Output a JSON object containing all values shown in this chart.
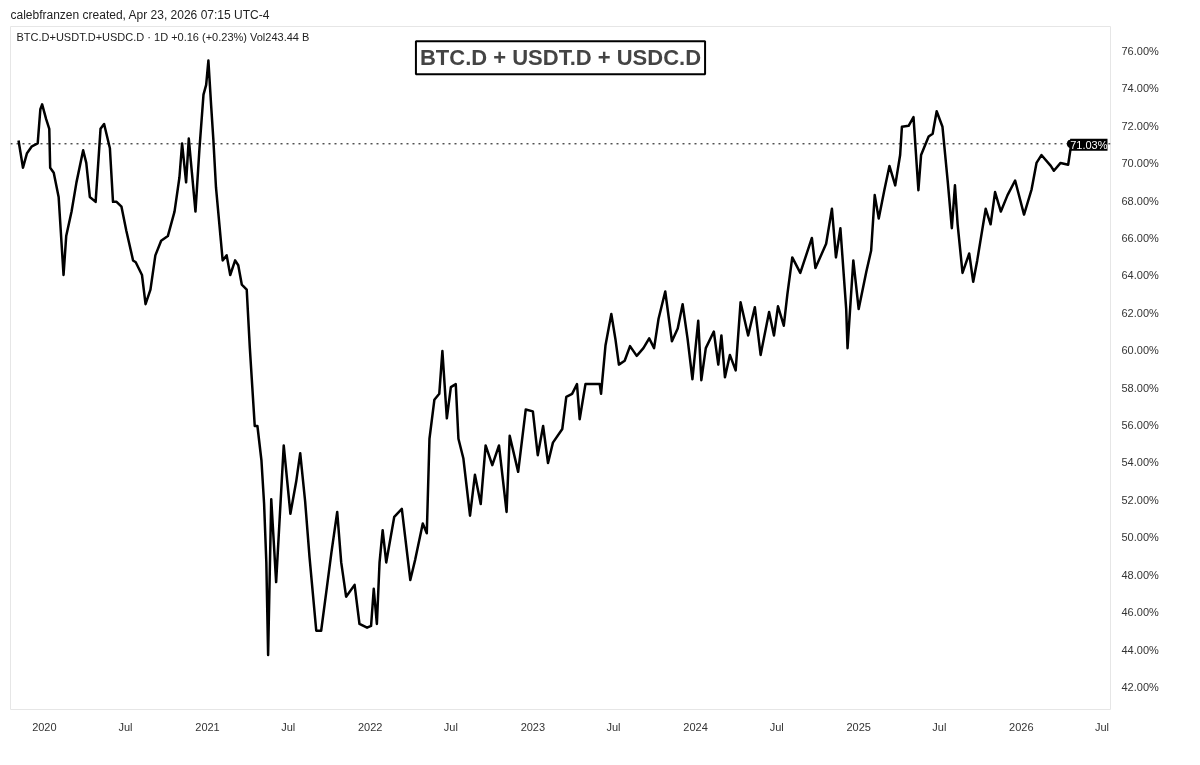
{
  "chart_data": {
    "type": "line",
    "title": "BTC.D + USDT.D + USDC.D",
    "annotations": [
      "calebfranzen created, Apr 23, 2026 07:15 UTC-4",
      "BTC.D+USDT.D+USDC.D · 1D  +0.16 (+0.23%)  Vol243.44 B"
    ],
    "xlim": [
      "2019-10-17",
      "2026-07-20"
    ],
    "ylim": [
      40.8,
      77.3
    ],
    "xticks": [
      {
        "value": "2020-01-01",
        "label": "2020"
      },
      {
        "value": "2020-07-01",
        "label": "Jul"
      },
      {
        "value": "2021-01-01",
        "label": "2021"
      },
      {
        "value": "2021-07-01",
        "label": "Jul"
      },
      {
        "value": "2022-01-01",
        "label": "2022"
      },
      {
        "value": "2022-07-01",
        "label": "Jul"
      },
      {
        "value": "2023-01-01",
        "label": "2023"
      },
      {
        "value": "2023-07-01",
        "label": "Jul"
      },
      {
        "value": "2024-01-01",
        "label": "2024"
      },
      {
        "value": "2024-07-01",
        "label": "Jul"
      },
      {
        "value": "2025-01-01",
        "label": "2025"
      },
      {
        "value": "2025-07-01",
        "label": "Jul"
      },
      {
        "value": "2026-01-01",
        "label": "2026"
      },
      {
        "value": "2026-07-01",
        "label": "Jul"
      }
    ],
    "yticks": [
      {
        "value": 42,
        "label": "42.00%"
      },
      {
        "value": 44,
        "label": "44.00%"
      },
      {
        "value": 46,
        "label": "46.00%"
      },
      {
        "value": 48,
        "label": "48.00%"
      },
      {
        "value": 50,
        "label": "50.00%"
      },
      {
        "value": 52,
        "label": "52.00%"
      },
      {
        "value": 54,
        "label": "54.00%"
      },
      {
        "value": 56,
        "label": "56.00%"
      },
      {
        "value": 58,
        "label": "58.00%"
      },
      {
        "value": 60,
        "label": "60.00%"
      },
      {
        "value": 62,
        "label": "62.00%"
      },
      {
        "value": 64,
        "label": "64.00%"
      },
      {
        "value": 66,
        "label": "66.00%"
      },
      {
        "value": 68,
        "label": "68.00%"
      },
      {
        "value": 70,
        "label": "70.00%"
      },
      {
        "value": 72,
        "label": "72.00%"
      },
      {
        "value": 74,
        "label": "74.00%"
      },
      {
        "value": 76,
        "label": "76.00%"
      }
    ],
    "grid": false,
    "line_style": "solid",
    "ref_lines": [
      {
        "axis": "y",
        "value": 71.03,
        "label": "71.03%",
        "line_style": "dotted",
        "color": "#000000"
      }
    ],
    "series": [
      {
        "color": "#000000",
        "x": [
          "2019-11-04",
          "2019-11-14",
          "2019-11-23",
          "2019-12-04",
          "2019-12-17",
          "2019-12-23",
          "2019-12-27",
          "2020-01-05",
          "2020-01-12",
          "2020-01-14",
          "2020-01-22",
          "2020-02-02",
          "2020-02-13",
          "2020-02-19",
          "2020-03-02",
          "2020-03-13",
          "2020-03-28",
          "2020-04-04",
          "2020-04-12",
          "2020-04-25",
          "2020-05-06",
          "2020-05-14",
          "2020-05-27",
          "2020-06-03",
          "2020-06-11",
          "2020-06-22",
          "2020-07-03",
          "2020-07-18",
          "2020-07-24",
          "2020-08-07",
          "2020-08-15",
          "2020-08-26",
          "2020-09-06",
          "2020-09-19",
          "2020-10-04",
          "2020-10-19",
          "2020-10-30",
          "2020-11-05",
          "2020-11-14",
          "2020-11-20",
          "2020-11-27",
          "2020-12-05",
          "2020-12-14",
          "2020-12-23",
          "2020-12-29",
          "2021-01-03",
          "2021-01-09",
          "2021-01-14",
          "2021-01-20",
          "2021-01-31",
          "2021-02-04",
          "2021-02-13",
          "2021-02-21",
          "2021-03-04",
          "2021-03-11",
          "2021-03-19",
          "2021-03-30",
          "2021-04-06",
          "2021-04-17",
          "2021-04-23",
          "2021-05-02",
          "2021-05-08",
          "2021-05-13",
          "2021-05-17",
          "2021-05-24",
          "2021-06-04",
          "2021-06-21",
          "2021-07-06",
          "2021-07-19",
          "2021-07-28",
          "2021-08-08",
          "2021-08-18",
          "2021-09-02",
          "2021-09-13",
          "2021-09-26",
          "2021-10-06",
          "2021-10-19",
          "2021-10-28",
          "2021-11-08",
          "2021-11-27",
          "2021-12-08",
          "2021-12-25",
          "2022-01-03",
          "2022-01-09",
          "2022-01-16",
          "2022-01-22",
          "2022-01-29",
          "2022-02-06",
          "2022-02-24",
          "2022-03-13",
          "2022-04-01",
          "2022-04-12",
          "2022-04-29",
          "2022-05-08",
          "2022-05-14",
          "2022-05-25",
          "2022-06-05",
          "2022-06-12",
          "2022-06-22",
          "2022-07-01",
          "2022-07-12",
          "2022-07-18",
          "2022-07-29",
          "2022-08-13",
          "2022-08-24",
          "2022-09-06",
          "2022-09-17",
          "2022-10-02",
          "2022-10-17",
          "2022-11-03",
          "2022-11-10",
          "2022-11-29",
          "2022-12-16",
          "2023-01-01",
          "2023-01-12",
          "2023-01-24",
          "2023-02-04",
          "2023-02-15",
          "2023-03-08",
          "2023-03-17",
          "2023-03-30",
          "2023-04-10",
          "2023-04-16",
          "2023-04-29",
          "2023-05-31",
          "2023-06-03",
          "2023-06-13",
          "2023-06-26",
          "2023-07-05",
          "2023-07-13",
          "2023-07-26",
          "2023-08-07",
          "2023-08-22",
          "2023-09-06",
          "2023-09-19",
          "2023-09-30",
          "2023-10-10",
          "2023-10-25",
          "2023-11-09",
          "2023-11-22",
          "2023-12-03",
          "2023-12-14",
          "2023-12-25",
          "2024-01-07",
          "2024-01-14",
          "2024-01-24",
          "2024-02-11",
          "2024-02-21",
          "2024-02-28",
          "2024-03-07",
          "2024-03-18",
          "2024-03-31",
          "2024-04-11",
          "2024-04-28",
          "2024-05-13",
          "2024-05-26",
          "2024-06-14",
          "2024-06-25",
          "2024-07-04",
          "2024-07-17",
          "2024-07-25",
          "2024-08-05",
          "2024-08-23",
          "2024-09-18",
          "2024-09-26",
          "2024-10-20",
          "2024-11-02",
          "2024-11-11",
          "2024-11-21",
          "2024-12-04",
          "2024-12-07",
          "2024-12-20",
          "2025-01-01",
          "2025-01-18",
          "2025-01-29",
          "2025-02-06",
          "2025-02-15",
          "2025-02-28",
          "2025-03-11",
          "2025-03-24",
          "2025-04-04",
          "2025-04-08",
          "2025-04-23",
          "2025-05-04",
          "2025-05-15",
          "2025-05-21",
          "2025-06-07",
          "2025-06-16",
          "2025-06-25",
          "2025-07-08",
          "2025-07-20",
          "2025-07-29",
          "2025-08-05",
          "2025-08-11",
          "2025-08-22",
          "2025-09-06",
          "2025-09-15",
          "2025-09-24",
          "2025-10-13",
          "2025-10-24",
          "2025-11-03",
          "2025-11-16",
          "2025-12-01",
          "2025-12-18",
          "2026-01-07",
          "2026-01-24",
          "2026-02-04",
          "2026-02-15",
          "2026-03-08",
          "2026-03-15",
          "2026-03-30",
          "2026-04-16",
          "2026-04-23"
        ],
        "values": [
          71.21,
          69.75,
          70.53,
          70.9,
          71.05,
          72.88,
          73.14,
          72.35,
          71.83,
          69.75,
          69.49,
          68.19,
          64.02,
          66.1,
          67.41,
          68.97,
          70.69,
          70.01,
          68.19,
          67.93,
          71.83,
          72.09,
          70.79,
          67.93,
          67.93,
          67.67,
          66.37,
          64.8,
          64.7,
          64.02,
          62.46,
          63.24,
          65.07,
          65.85,
          66.1,
          67.41,
          69.23,
          71.05,
          68.97,
          71.31,
          69.49,
          67.41,
          70.79,
          73.66,
          74.18,
          75.48,
          73.14,
          71.31,
          68.71,
          65.85,
          64.8,
          65.07,
          64.02,
          64.8,
          64.54,
          63.5,
          63.24,
          60.11,
          55.95,
          55.95,
          54.12,
          51.78,
          48.66,
          43.71,
          52.04,
          47.61,
          54.91,
          51.26,
          52.98,
          54.5,
          51.94,
          48.92,
          45.01,
          45.01,
          47.35,
          49.18,
          51.36,
          48.66,
          46.83,
          47.46,
          45.37,
          45.17,
          45.27,
          47.25,
          45.37,
          48.66,
          50.38,
          48.66,
          51.1,
          51.52,
          47.72,
          48.81,
          50.74,
          50.22,
          55.27,
          57.35,
          57.67,
          59.96,
          56.36,
          58.03,
          58.19,
          55.27,
          54.23,
          51.16,
          53.34,
          51.78,
          54.91,
          53.86,
          54.91,
          51.36,
          55.43,
          53.5,
          56.83,
          56.73,
          54.39,
          55.95,
          53.97,
          55.06,
          55.79,
          57.51,
          57.67,
          58.19,
          56.31,
          58.19,
          58.19,
          57.67,
          60.27,
          61.94,
          60.63,
          59.23,
          59.44,
          60.22,
          59.7,
          60.11,
          60.63,
          60.11,
          61.68,
          63.14,
          60.48,
          61.16,
          62.46,
          60.63,
          58.45,
          61.57,
          58.4,
          60.11,
          61.0,
          59.23,
          60.79,
          58.55,
          59.75,
          58.92,
          62.56,
          60.79,
          62.3,
          59.75,
          62.04,
          60.79,
          62.35,
          61.31,
          62.98,
          64.96,
          64.13,
          66.0,
          64.39,
          65.69,
          67.56,
          64.96,
          66.52,
          62.2,
          60.11,
          64.8,
          62.2,
          64.18,
          65.33,
          68.29,
          67.04,
          68.6,
          69.85,
          68.81,
          70.43,
          71.94,
          71.99,
          72.46,
          68.55,
          70.43,
          71.42,
          71.57,
          72.77,
          71.94,
          68.97,
          66.52,
          68.81,
          66.73,
          64.13,
          65.17,
          63.66,
          64.8,
          67.56,
          66.73,
          68.45,
          67.41,
          68.29,
          69.07,
          67.25,
          68.6,
          70.01,
          70.43,
          69.85,
          69.59,
          70.01,
          69.91,
          71.03
        ]
      },
      {
        "type": "scatter",
        "color": "#000000",
        "x": [
          "2026-04-23"
        ],
        "values": [
          71.03
        ]
      }
    ]
  }
}
